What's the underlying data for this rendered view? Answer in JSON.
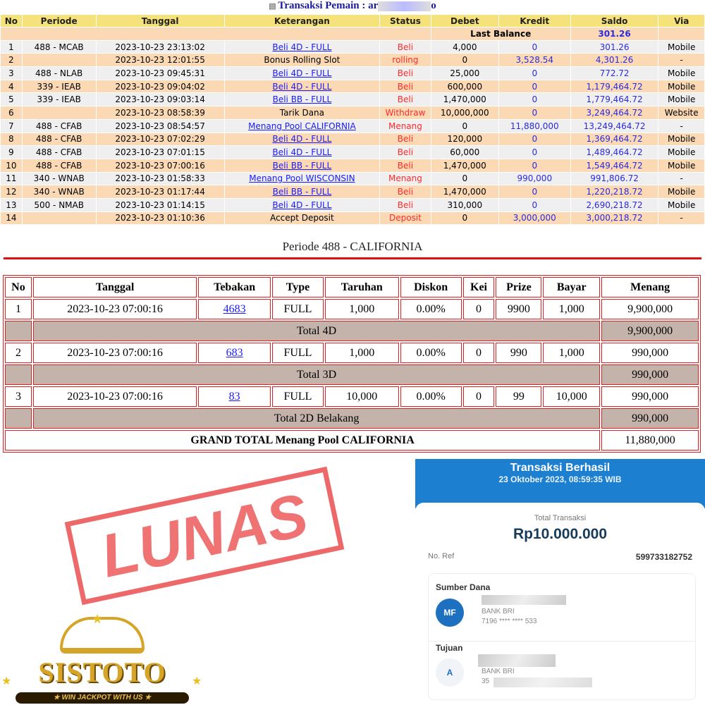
{
  "header": {
    "title": "Transaksi  Pemain : ar",
    "title_suffix": "o"
  },
  "columns": [
    "No",
    "Periode",
    "Tanggal",
    "Keterangan",
    "Status",
    "Debet",
    "Kredit",
    "Saldo",
    "Via"
  ],
  "last_balance": {
    "label": "Last Balance",
    "value": "301.26"
  },
  "rows": [
    [
      "1",
      "488 - MCAB",
      "2023-10-23 23:13:02",
      "Beli 4D - FULL",
      "Beli",
      "4,000",
      "0",
      "301.26",
      "Mobile"
    ],
    [
      "2",
      "",
      "2023-10-23 12:01:55",
      "Bonus Rolling Slot",
      "rolling",
      "0",
      "3,528.54",
      "4,301.26",
      "-"
    ],
    [
      "3",
      "488 - NLAB",
      "2023-10-23 09:45:31",
      "Beli 4D - FULL",
      "Beli",
      "25,000",
      "0",
      "772.72",
      "Mobile"
    ],
    [
      "4",
      "339 - IEAB",
      "2023-10-23 09:04:02",
      "Beli 4D - FULL",
      "Beli",
      "600,000",
      "0",
      "1,179,464.72",
      "Mobile"
    ],
    [
      "5",
      "339 - IEAB",
      "2023-10-23 09:03:14",
      "Beli BB - FULL",
      "Beli",
      "1,470,000",
      "0",
      "1,779,464.72",
      "Mobile"
    ],
    [
      "6",
      "",
      "2023-10-23 08:58:39",
      "Tarik Dana",
      "Withdraw",
      "10,000,000",
      "0",
      "3,249,464.72",
      "Website"
    ],
    [
      "7",
      "488 - CFAB",
      "2023-10-23 08:54:57",
      "Menang Pool CALIFORNIA",
      "Menang",
      "0",
      "11,880,000",
      "13,249,464.72",
      "-"
    ],
    [
      "8",
      "488 - CFAB",
      "2023-10-23 07:02:29",
      "Beli 4D - FULL",
      "Beli",
      "120,000",
      "0",
      "1,369,464.72",
      "Mobile"
    ],
    [
      "9",
      "488 - CFAB",
      "2023-10-23 07:01:15",
      "Beli 4D - FULL",
      "Beli",
      "60,000",
      "0",
      "1,489,464.72",
      "Mobile"
    ],
    [
      "10",
      "488 - CFAB",
      "2023-10-23 07:00:16",
      "Beli BB - FULL",
      "Beli",
      "1,470,000",
      "0",
      "1,549,464.72",
      "Mobile"
    ],
    [
      "11",
      "340 - WNAB",
      "2023-10-23 01:58:33",
      "Menang Pool WISCONSIN",
      "Menang",
      "0",
      "990,000",
      "991,806.72",
      "-"
    ],
    [
      "12",
      "340 - WNAB",
      "2023-10-23 01:17:44",
      "Beli BB - FULL",
      "Beli",
      "1,470,000",
      "0",
      "1,220,218.72",
      "Mobile"
    ],
    [
      "13",
      "500 - NMAB",
      "2023-10-23 01:14:15",
      "Beli 4D - FULL",
      "Beli",
      "310,000",
      "0",
      "2,690,218.72",
      "Mobile"
    ],
    [
      "14",
      "",
      "2023-10-23 01:10:36",
      "Accept Deposit",
      "Deposit",
      "0",
      "3,000,000",
      "3,000,218.72",
      "-"
    ]
  ],
  "periode": {
    "title": "Periode 488 - CALIFORNIA",
    "columns": [
      "No",
      "Tanggal",
      "Tebakan",
      "Type",
      "Taruhan",
      "Diskon",
      "Kei",
      "Prize",
      "Bayar",
      "Menang"
    ],
    "groups": [
      {
        "row": [
          "1",
          "2023-10-23 07:00:16",
          "4683",
          "FULL",
          "1,000",
          "0.00%",
          "0",
          "9900",
          "1,000",
          "9,900,000"
        ],
        "total_label": "Total 4D",
        "total": "9,900,000"
      },
      {
        "row": [
          "2",
          "2023-10-23 07:00:16",
          "683",
          "FULL",
          "1,000",
          "0.00%",
          "0",
          "990",
          "1,000",
          "990,000"
        ],
        "total_label": "Total 3D",
        "total": "990,000"
      },
      {
        "row": [
          "3",
          "2023-10-23 07:00:16",
          "83",
          "FULL",
          "10,000",
          "0.00%",
          "0",
          "99",
          "10,000",
          "990,000"
        ],
        "total_label": "Total 2D Belakang",
        "total": "990,000"
      }
    ],
    "grand_label": "GRAND TOTAL  Menang Pool CALIFORNIA",
    "grand_total": "11,880,000"
  },
  "stamp": "LUNAS",
  "receipt": {
    "title": "Transaksi Berhasil",
    "datetime": "23 Oktober 2023, 08:59:35 WIB",
    "total_label": "Total Transaksi",
    "amount": "Rp10.000.000",
    "ref_label": "No. Ref",
    "ref": "599733182752",
    "source_label": "Sumber Dana",
    "source_initials": "MF",
    "source_bank": "BANK BRI",
    "source_account": "7196 **** **** 533",
    "dest_label": "Tujuan",
    "dest_initials": "A",
    "dest_bank": "BANK BRI",
    "dest_account": "35"
  },
  "logo": {
    "name": "SISTOTO",
    "tagline": "WIN JACKPOT WITH US"
  }
}
